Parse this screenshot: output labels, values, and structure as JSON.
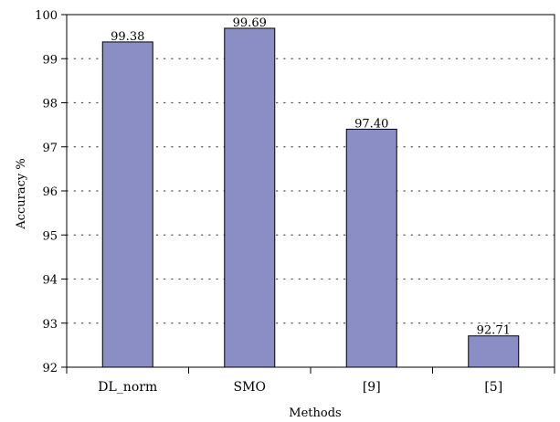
{
  "chart_data": {
    "type": "bar",
    "title": "",
    "xlabel": "Methods",
    "ylabel": "Accuracy %",
    "categories": [
      "DL_norm",
      "SMO",
      "[9]",
      "[5]"
    ],
    "values": [
      99.38,
      99.69,
      97.4,
      92.71
    ],
    "data_labels": [
      "99.38",
      "99.69",
      "97.40",
      "92.71"
    ],
    "ylim": [
      92,
      100
    ],
    "yticks": [
      92,
      93,
      94,
      95,
      96,
      97,
      98,
      99,
      100
    ],
    "grid": "horizontal-dotted",
    "legend": "none",
    "colors": {
      "bar_fill": "#8b8ec5",
      "bar_stroke": "#000000",
      "grid": "#555555",
      "axis": "#000000"
    }
  }
}
